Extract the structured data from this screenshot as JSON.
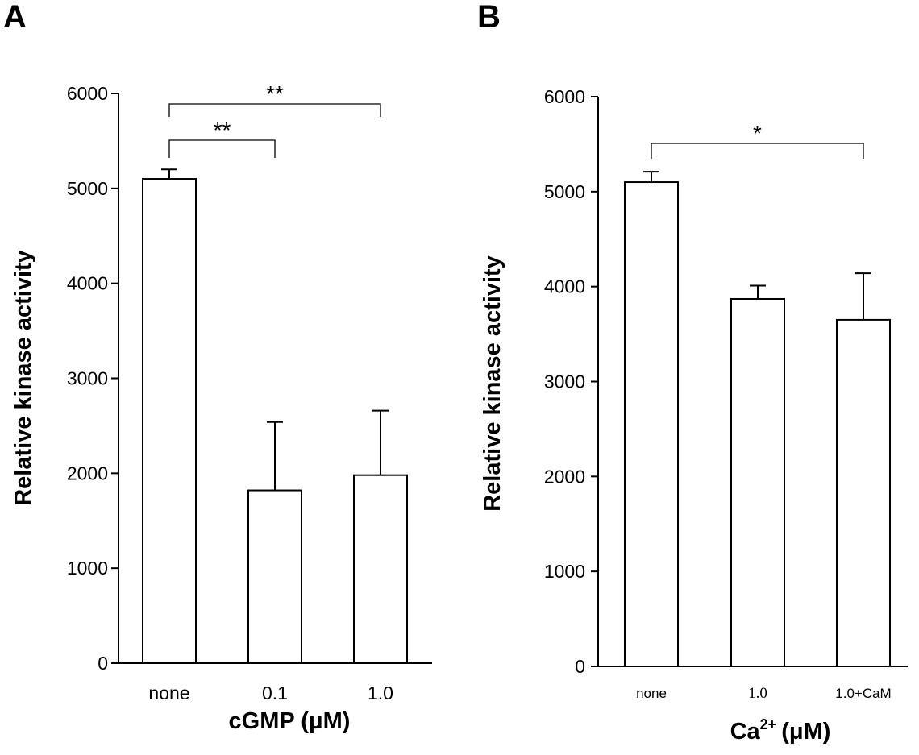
{
  "chart_data": [
    {
      "panel": "A",
      "type": "bar",
      "ylabel": "Relative kinase activity",
      "xlabel": "cGMP (μM)",
      "categories": [
        "none",
        "0.1",
        "1.0"
      ],
      "values": [
        5100,
        1820,
        1980
      ],
      "errors": [
        100,
        720,
        680
      ],
      "ylim": [
        0,
        6000
      ],
      "yticks": [
        "0",
        "1000",
        "2000",
        "3000",
        "4000",
        "5000",
        "6000"
      ],
      "significance": [
        {
          "from": 0,
          "to": 2,
          "label": "**"
        },
        {
          "from": 0,
          "to": 1,
          "label": "**"
        }
      ]
    },
    {
      "panel": "B",
      "type": "bar",
      "ylabel": "Relative kinase activity",
      "xlabel": "Ca",
      "xlabel_sup": "2+",
      "xlabel_unit": "(μM)",
      "categories": [
        "none",
        "1.0",
        "1.0+CaM"
      ],
      "values": [
        5100,
        3870,
        3650
      ],
      "errors": [
        110,
        140,
        490
      ],
      "ylim": [
        0,
        6000
      ],
      "yticks": [
        "0",
        "1000",
        "2000",
        "3000",
        "4000",
        "5000",
        "6000"
      ],
      "significance": [
        {
          "from": 0,
          "to": 2,
          "label": "*"
        }
      ]
    }
  ]
}
